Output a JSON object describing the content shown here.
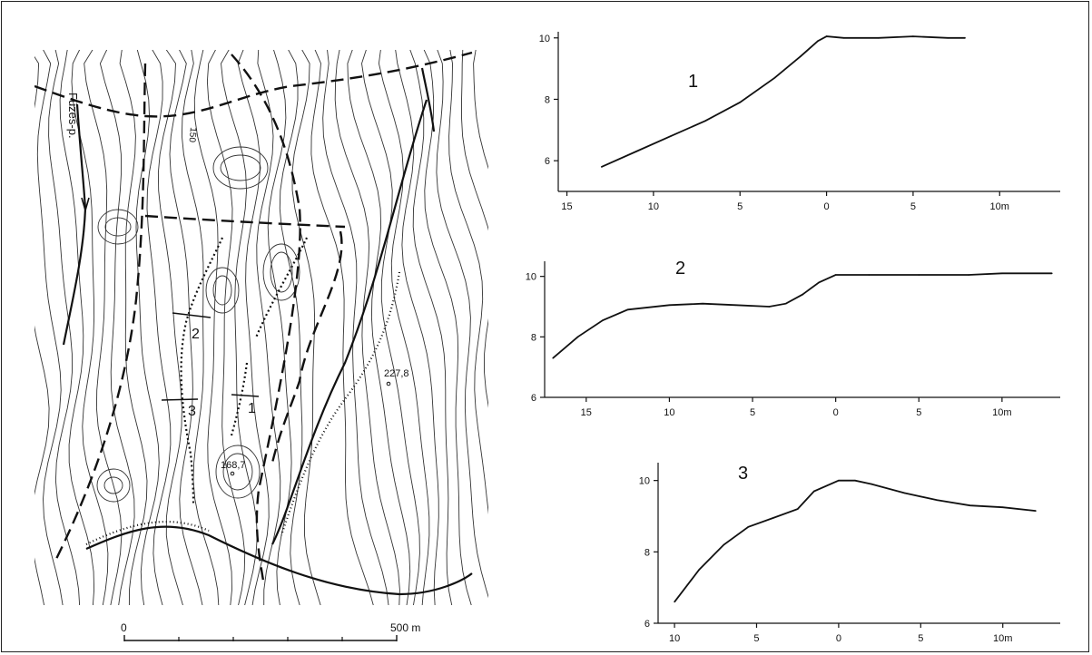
{
  "map": {
    "stream_label": "Füzes-p.",
    "contour_label": "150",
    "spot_heights": [
      "227,8",
      "168,7"
    ],
    "section_labels": [
      "1",
      "2",
      "3"
    ],
    "scale_bar": {
      "start": "0",
      "end": "500 m"
    }
  },
  "chart_data": [
    {
      "type": "line",
      "panel_label": "1",
      "x_ticks": [
        "15",
        "10",
        "5",
        "0",
        "5",
        "10m"
      ],
      "y_ticks": [
        "6",
        "8",
        "10"
      ],
      "xlim": [
        -15.5,
        13.5
      ],
      "ylim": [
        5,
        10.2
      ],
      "series": [
        {
          "x": [
            -13,
            -11,
            -9,
            -7,
            -5,
            -3,
            -1.5,
            -0.5,
            0,
            1,
            3,
            5,
            7,
            8
          ],
          "y": [
            5.8,
            6.3,
            6.8,
            7.3,
            7.9,
            8.7,
            9.4,
            9.9,
            10.05,
            10.0,
            10.0,
            10.05,
            10.0,
            10.0
          ]
        }
      ]
    },
    {
      "type": "line",
      "panel_label": "2",
      "x_ticks": [
        "15",
        "10",
        "5",
        "0",
        "5",
        "10m"
      ],
      "y_ticks": [
        "6",
        "8",
        "10"
      ],
      "xlim": [
        -17.5,
        13.5
      ],
      "ylim": [
        6,
        10.5
      ],
      "series": [
        {
          "x": [
            -17,
            -15.5,
            -14,
            -12.5,
            -10,
            -8,
            -6,
            -4,
            -3,
            -2,
            -1,
            0,
            2,
            5,
            8,
            10,
            13
          ],
          "y": [
            7.3,
            8.0,
            8.55,
            8.9,
            9.05,
            9.1,
            9.05,
            9.0,
            9.1,
            9.4,
            9.8,
            10.05,
            10.05,
            10.05,
            10.05,
            10.1,
            10.1
          ]
        }
      ]
    },
    {
      "type": "line",
      "panel_label": "3",
      "x_ticks": [
        "10",
        "5",
        "0",
        "5",
        "10m"
      ],
      "y_ticks": [
        "6",
        "8",
        "10"
      ],
      "xlim": [
        -11,
        13.5
      ],
      "ylim": [
        6,
        10.5
      ],
      "series": [
        {
          "x": [
            -10,
            -8.5,
            -7,
            -5.5,
            -4,
            -2.5,
            -1.5,
            0,
            1,
            2,
            4,
            6,
            8,
            10,
            12
          ],
          "y": [
            6.6,
            7.5,
            8.2,
            8.7,
            8.95,
            9.2,
            9.7,
            10.0,
            10.0,
            9.9,
            9.65,
            9.45,
            9.3,
            9.25,
            9.15
          ]
        }
      ]
    }
  ]
}
